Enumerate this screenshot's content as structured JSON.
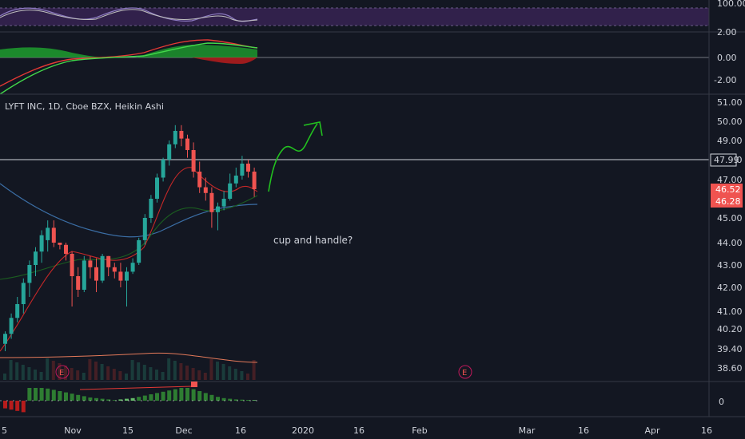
{
  "theme": {
    "background": "#131722",
    "grid": "#2a2e39",
    "text": "#d1d4dc",
    "up": "#26a69a",
    "down": "#ef5350",
    "rsi_band": "#4b2a6e",
    "macd_bull": "#1e9e2e",
    "macd_bear": "#b71c1c"
  },
  "header": {
    "title": "LYFT INC, 1D, Cboe BZX, Heikin Ashi"
  },
  "annotation": {
    "text": "cup and handle?",
    "arrow_color": "#22c01f"
  },
  "earnings": {
    "label": "E"
  },
  "rsi_pane": {
    "ticks": [
      "100.00"
    ]
  },
  "macd_pane": {
    "ticks": [
      "2.00",
      "0.00",
      "-2.00"
    ]
  },
  "volume_pane": {
    "ticks": [
      "0"
    ]
  },
  "price_tags": {
    "hline": "47.99",
    "last": "46.52",
    "ma": "46.28"
  },
  "chart_data": {
    "type": "candlestick",
    "symbol": "LYFT INC",
    "interval": "1D",
    "exchange": "Cboe BZX",
    "style": "Heikin Ashi",
    "y_ticks": [
      "51.00",
      "50.00",
      "49.00",
      "48.00",
      "47.00",
      "46.00",
      "45.00",
      "44.00",
      "43.00",
      "42.00",
      "41.00",
      "40.20",
      "39.40",
      "38.60"
    ],
    "x_ticks": [
      "5",
      "Nov",
      "15",
      "Dec",
      "16",
      "2020",
      "16",
      "Feb",
      "Mar",
      "16",
      "Apr",
      "16"
    ],
    "horizontal_line": 47.99,
    "last_price": 46.52,
    "moving_average_value": 46.28,
    "candles": [
      [
        39.6,
        40.1,
        39.3,
        40.0
      ],
      [
        40.0,
        40.9,
        39.8,
        40.7
      ],
      [
        40.7,
        41.6,
        40.5,
        41.3
      ],
      [
        41.3,
        42.4,
        40.9,
        42.2
      ],
      [
        42.2,
        43.2,
        41.6,
        43.0
      ],
      [
        43.0,
        43.8,
        42.5,
        43.6
      ],
      [
        43.6,
        44.5,
        43.1,
        44.3
      ],
      [
        44.1,
        44.9,
        43.6,
        44.6
      ],
      [
        44.6,
        44.9,
        43.8,
        44.0
      ],
      [
        44.0,
        44.0,
        43.7,
        43.9
      ],
      [
        43.9,
        44.0,
        43.2,
        43.5
      ],
      [
        43.5,
        43.6,
        41.2,
        42.5
      ],
      [
        42.5,
        42.9,
        41.6,
        41.9
      ],
      [
        41.9,
        43.4,
        41.8,
        43.2
      ],
      [
        43.2,
        43.4,
        42.4,
        42.9
      ],
      [
        42.9,
        43.3,
        41.8,
        42.3
      ],
      [
        42.3,
        43.5,
        42.2,
        43.4
      ],
      [
        43.4,
        43.4,
        42.5,
        42.9
      ],
      [
        42.9,
        43.1,
        42.4,
        42.7
      ],
      [
        42.7,
        43.1,
        42.0,
        42.3
      ],
      [
        42.3,
        42.9,
        41.2,
        42.7
      ],
      [
        42.7,
        43.3,
        42.6,
        43.1
      ],
      [
        43.1,
        44.2,
        43.0,
        44.1
      ],
      [
        44.1,
        45.2,
        43.9,
        45.0
      ],
      [
        45.0,
        46.2,
        44.8,
        46.0
      ],
      [
        46.0,
        47.3,
        45.8,
        47.1
      ],
      [
        47.1,
        48.1,
        46.9,
        48.0
      ],
      [
        48.0,
        49.0,
        47.7,
        48.8
      ],
      [
        48.8,
        49.8,
        48.6,
        49.5
      ],
      [
        49.5,
        49.8,
        48.7,
        49.1
      ],
      [
        49.1,
        49.3,
        48.1,
        48.5
      ],
      [
        48.5,
        48.9,
        47.1,
        47.4
      ],
      [
        47.4,
        47.9,
        46.3,
        46.6
      ],
      [
        46.6,
        47.1,
        45.9,
        46.3
      ],
      [
        46.3,
        46.6,
        44.6,
        45.3
      ],
      [
        45.3,
        45.8,
        44.5,
        45.6
      ],
      [
        45.6,
        46.4,
        45.4,
        46.0
      ],
      [
        46.0,
        47.3,
        45.9,
        46.8
      ],
      [
        46.8,
        47.6,
        46.6,
        47.2
      ],
      [
        47.2,
        48.2,
        47.0,
        47.8
      ],
      [
        47.8,
        48.0,
        47.1,
        47.4
      ],
      [
        47.4,
        47.6,
        46.1,
        46.5
      ]
    ],
    "volume_histogram": [
      0.6,
      0.7,
      0.8,
      0.9,
      1.0,
      1.0,
      1.0,
      0.95,
      0.85,
      0.75,
      0.65,
      0.55,
      0.45,
      0.35,
      0.25,
      0.2,
      0.15,
      0.1,
      0.05,
      0.1,
      0.15,
      0.2,
      0.3,
      0.4,
      0.5,
      0.6,
      0.7,
      0.8,
      0.9,
      1.0,
      1.0,
      0.9,
      0.75,
      0.6,
      0.45,
      0.3,
      0.2,
      0.15,
      0.1,
      0.08,
      0.06,
      0.05
    ]
  }
}
